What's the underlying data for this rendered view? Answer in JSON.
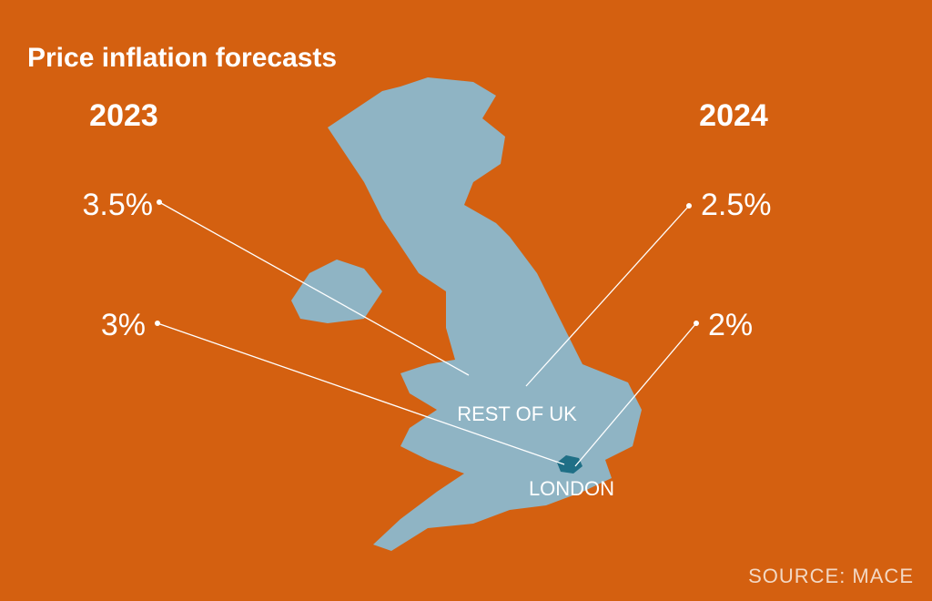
{
  "title": "Price inflation forecasts",
  "years": [
    "2023",
    "2024"
  ],
  "regions": [
    {
      "name": "REST OF UK",
      "forecasts": [
        "3.5%",
        "2.5%"
      ]
    },
    {
      "name": "LONDON",
      "forecasts": [
        "3%",
        "2%"
      ]
    }
  ],
  "source": "SOURCE: MACE"
}
